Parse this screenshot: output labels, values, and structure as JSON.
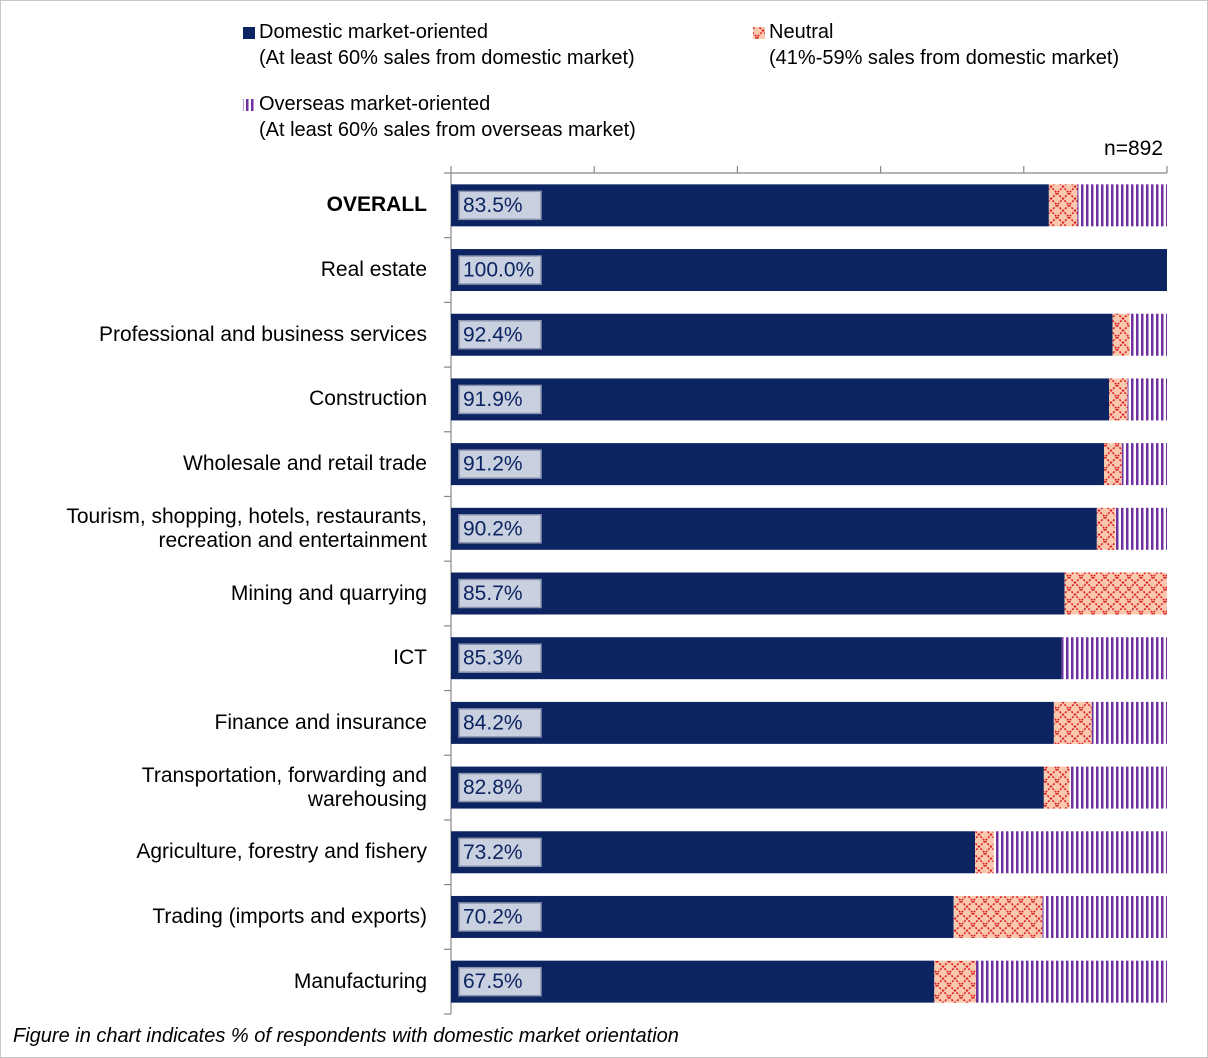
{
  "chart_data": {
    "type": "stacked_barh",
    "annotation": "n=892",
    "footnote": "Figure in chart indicates % of respondents with domestic market orientation",
    "categories": [
      "OVERALL",
      "Real estate",
      "Professional and business services",
      "Construction",
      "Wholesale and retail trade",
      "Tourism, shopping, hotels, restaurants,\nrecreation and entertainment",
      "Mining and quarrying",
      "ICT",
      "Finance and insurance",
      "Transportation, forwarding and\nwarehousing",
      "Agriculture, forestry and fishery",
      "Trading (imports and exports)",
      "Manufacturing"
    ],
    "series": [
      {
        "name": "Domestic market-oriented",
        "legend_subtitle": "(At least 60% sales from domestic market)",
        "color": "#0c2461",
        "values": [
          83.5,
          100.0,
          92.4,
          91.9,
          91.2,
          90.2,
          85.7,
          85.3,
          84.2,
          82.8,
          73.2,
          70.2,
          67.5
        ],
        "value_labels": [
          "83.5%",
          "100.0%",
          "92.4%",
          "91.9%",
          "91.2%",
          "90.2%",
          "85.7%",
          "85.3%",
          "84.2%",
          "82.8%",
          "73.2%",
          "70.2%",
          "67.5%"
        ]
      },
      {
        "name": "Neutral",
        "legend_subtitle": "(41%-59% sales from domestic market)",
        "color": "#f8c9b0",
        "values": [
          4.0,
          0,
          2.4,
          2.6,
          2.5,
          2.6,
          14.3,
          0,
          5.3,
          3.6,
          2.6,
          12.4,
          5.8
        ]
      },
      {
        "name": "Overseas market-oriented",
        "legend_subtitle": "(At least 60% sales from overseas market)",
        "color": "#7030a0",
        "values": [
          12.5,
          0,
          5.2,
          5.5,
          6.3,
          7.2,
          0,
          14.7,
          10.5,
          13.6,
          24.2,
          17.4,
          26.7
        ]
      }
    ],
    "xlim": [
      0,
      100
    ],
    "xticks": [
      0,
      20,
      40,
      60,
      80,
      100
    ]
  }
}
